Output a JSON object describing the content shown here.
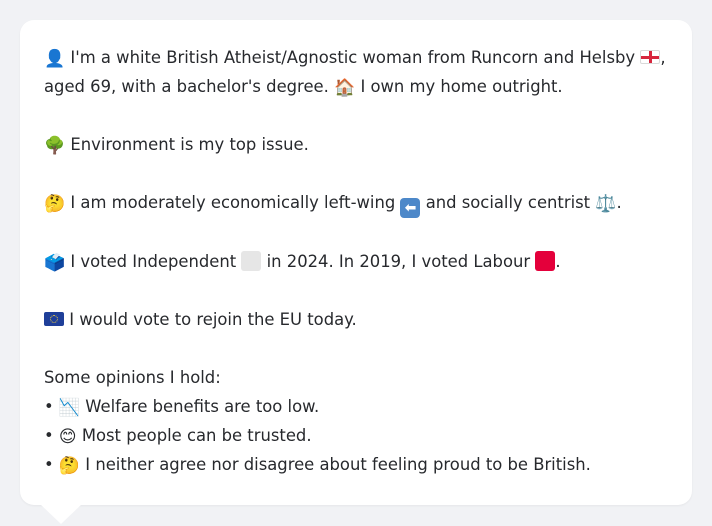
{
  "profile": {
    "intro_line1": "I'm a white British Atheist/Agnostic woman from Runcorn and Helsby",
    "intro_line1_end": ",",
    "intro_line2": "aged 69, with a bachelor's degree.",
    "home": "I own my home outright.",
    "top_issue": "Environment is my top issue.",
    "econ_a": "I am moderately economically left-wing",
    "econ_b": "and socially centrist",
    "econ_end": ".",
    "vote_a": "I voted Independent",
    "vote_b": "in 2024. In 2019, I voted Labour",
    "vote_end": ".",
    "eu": "I would vote to rejoin the EU today.",
    "opinions_heading": "Some opinions I hold:",
    "opinions": [
      "Welfare benefits are too low.",
      "Most people can be trusted.",
      "I neither agree nor disagree about feeling proud to be British."
    ],
    "bullet": "•"
  },
  "icons": {
    "person": "👤",
    "house": "🏠",
    "tree": "🌳",
    "thinking": "🤔",
    "arrow_left": "⬅",
    "scales": "⚖️",
    "ballot": "🗳️",
    "chart_down": "📉",
    "smile": "😊"
  },
  "colors": {
    "independent": "#e6e6e6",
    "labour": "#e4003b",
    "background": "#f1f2f5",
    "bubble": "#ffffff"
  }
}
